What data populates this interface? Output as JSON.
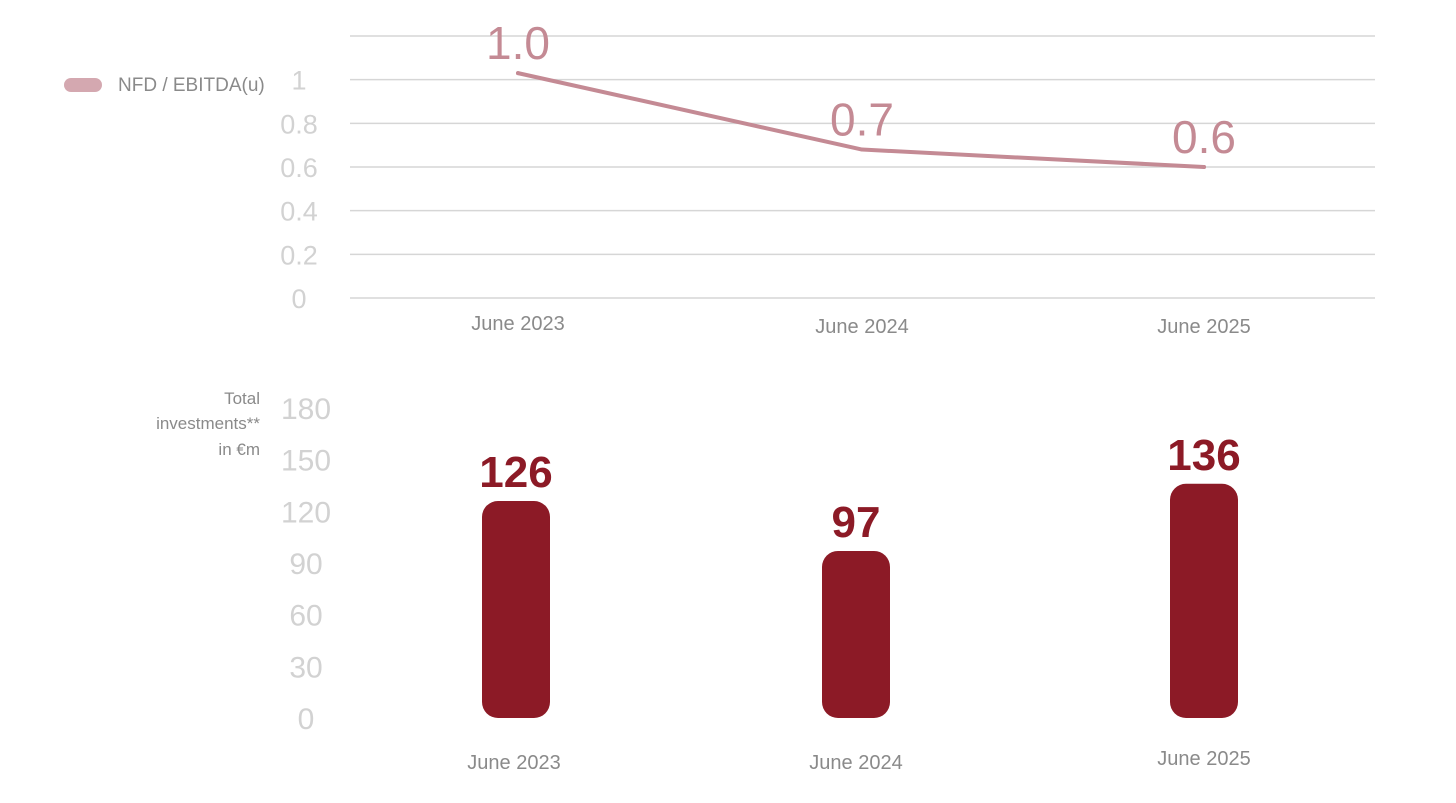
{
  "colors": {
    "line": "#c48a94",
    "legend": "#d4a8b0",
    "bar": "#8c1a26",
    "grid": "#d6d6d6",
    "tick": "#d2d2d2",
    "category": "#8a8a8a"
  },
  "chart_data": [
    {
      "type": "line",
      "categories": [
        "June 2023",
        "June 2024",
        "June 2025"
      ],
      "series": [
        {
          "name": "NFD / EBITDA(u)",
          "values": [
            1.03,
            0.68,
            0.6
          ]
        }
      ],
      "data_labels": [
        "1.0",
        "0.7",
        "0.6"
      ],
      "yticks": [
        "1",
        "0.8",
        "0.6",
        "0.4",
        "0.2",
        "0"
      ],
      "ylim": [
        0,
        1.2
      ],
      "grid": true,
      "legend": "top-left"
    },
    {
      "type": "bar",
      "categories": [
        "June 2023",
        "June 2024",
        "June 2025"
      ],
      "values": [
        126,
        97,
        136
      ],
      "data_labels": [
        "126",
        "97",
        "136"
      ],
      "yticks": [
        "180",
        "150",
        "120",
        "90",
        "60",
        "30",
        "0"
      ],
      "ylim": [
        0,
        180
      ],
      "ylabel_lines": [
        "Total",
        "investments**",
        "in €m"
      ],
      "grid": false
    }
  ]
}
